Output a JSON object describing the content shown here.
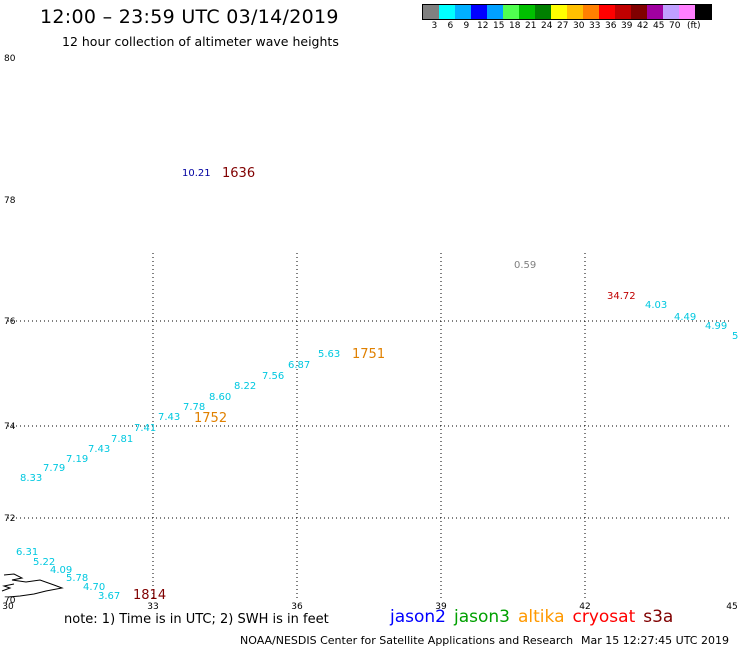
{
  "header": {
    "title": "12:00 – 23:59 UTC 03/14/2019",
    "subtitle": "12 hour collection of altimeter wave heights"
  },
  "scale": {
    "colors": [
      "#808080",
      "#00ffff",
      "#00b0ff",
      "#0000ff",
      "#00a0ff",
      "#50ff50",
      "#00c000",
      "#008000",
      "#ffff00",
      "#ffc000",
      "#ff8000",
      "#ff0000",
      "#c00000",
      "#800000",
      "#a000a0",
      "#c0a0ff",
      "#ff80ff",
      "#000000"
    ],
    "labels": [
      "3",
      "6",
      "9",
      "12",
      "15",
      "18",
      "21",
      "24",
      "27",
      "30",
      "33",
      "36",
      "39",
      "42",
      "45",
      "70",
      "(ft)"
    ]
  },
  "axes": {
    "y_labels": [
      "80",
      "78",
      "76",
      "74",
      "72",
      "70"
    ],
    "x_labels": [
      "30",
      "33",
      "36",
      "39",
      "42",
      "45"
    ]
  },
  "observations": [
    {
      "text": "10.21",
      "color": "#0000a0"
    },
    {
      "text": "1636",
      "color": "#800000"
    },
    {
      "text": "0.59",
      "color": "#808080"
    },
    {
      "text": "34.72",
      "color": "#c00000"
    },
    {
      "text": "4.03",
      "color": "#00c8e0"
    },
    {
      "text": "4.49",
      "color": "#00c8e0"
    },
    {
      "text": "4.99",
      "color": "#00c8e0"
    },
    {
      "text": "5",
      "color": "#00c8e0"
    },
    {
      "text": "5.63",
      "color": "#00c8e0"
    },
    {
      "text": "1751",
      "color": "#e08000"
    },
    {
      "text": "6.87",
      "color": "#00c8e0"
    },
    {
      "text": "7.56",
      "color": "#00c8e0"
    },
    {
      "text": "8.22",
      "color": "#00c8e0"
    },
    {
      "text": "8.60",
      "color": "#00c8e0"
    },
    {
      "text": "7.78",
      "color": "#00c8e0"
    },
    {
      "text": "7.43",
      "color": "#00c8e0"
    },
    {
      "text": "1752",
      "color": "#e08000"
    },
    {
      "text": "7.41",
      "color": "#00c8e0"
    },
    {
      "text": "7.81",
      "color": "#00c8e0"
    },
    {
      "text": "7.43",
      "color": "#00c8e0"
    },
    {
      "text": "7.19",
      "color": "#00c8e0"
    },
    {
      "text": "7.79",
      "color": "#00c8e0"
    },
    {
      "text": "8.33",
      "color": "#00c8e0"
    },
    {
      "text": "6.31",
      "color": "#00c8e0"
    },
    {
      "text": "5.22",
      "color": "#00c8e0"
    },
    {
      "text": "4.09",
      "color": "#00c8e0"
    },
    {
      "text": "5.78",
      "color": "#00c8e0"
    },
    {
      "text": "4.70",
      "color": "#00c8e0"
    },
    {
      "text": "3.67",
      "color": "#00c8e0"
    },
    {
      "text": "1814",
      "color": "#800000"
    }
  ],
  "footer": {
    "note": "note:  1) Time is in UTC;  2) SWH is in feet",
    "satellites": [
      {
        "name": "jason2",
        "color": "#0000ff"
      },
      {
        "name": "jason3",
        "color": "#00a000"
      },
      {
        "name": "altika",
        "color": "#ff9900"
      },
      {
        "name": "cryosat",
        "color": "#ff0000"
      },
      {
        "name": "s3a",
        "color": "#800000"
      }
    ],
    "credit": "NOAA/NESDIS Center for Satellite Applications and Research",
    "timestamp": "Mar 15 12:27:45 UTC 2019"
  }
}
